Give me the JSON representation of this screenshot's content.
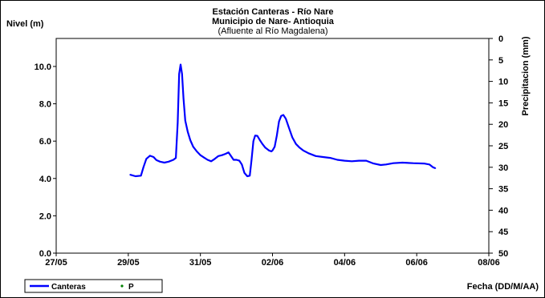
{
  "chart_data": {
    "type": "line",
    "title": "Estación Canteras - Río Nare",
    "title_line2": "Municipio de Nare- Antioquia",
    "subtitle": "(Afluente al Río Magdalena)",
    "ylabel": "Nivel (m)",
    "y2label": "Precipitacion (mm)",
    "xlabel": "Fecha (DD/M/AA)",
    "ylim": [
      0,
      11.5
    ],
    "yticks": [
      "0.0",
      "2.0",
      "4.0",
      "6.0",
      "8.0",
      "10.0"
    ],
    "y2lim": [
      0,
      50
    ],
    "y2reversed": true,
    "y2ticks": [
      "0",
      "5",
      "10",
      "15",
      "20",
      "25",
      "30",
      "35",
      "40",
      "45",
      "50"
    ],
    "xlim": [
      "2008-05-27",
      "2008-06-08"
    ],
    "xticks": [
      "27/05",
      "29/05",
      "31/05",
      "02/06",
      "04/06",
      "06/06",
      "08/06"
    ],
    "grid": false,
    "legend_position": "bottom-left",
    "series": [
      {
        "name": "Canteras",
        "color": "#0000ff",
        "points": [
          [
            29.05,
            4.2
          ],
          [
            29.2,
            4.12
          ],
          [
            29.35,
            4.15
          ],
          [
            29.42,
            4.6
          ],
          [
            29.5,
            5.05
          ],
          [
            29.6,
            5.22
          ],
          [
            29.7,
            5.15
          ],
          [
            29.78,
            4.98
          ],
          [
            29.88,
            4.9
          ],
          [
            30.0,
            4.85
          ],
          [
            30.12,
            4.9
          ],
          [
            30.25,
            5.0
          ],
          [
            30.32,
            5.1
          ],
          [
            30.37,
            7.0
          ],
          [
            30.41,
            9.6
          ],
          [
            30.45,
            10.1
          ],
          [
            30.49,
            9.6
          ],
          [
            30.53,
            8.3
          ],
          [
            30.58,
            7.1
          ],
          [
            30.65,
            6.5
          ],
          [
            30.72,
            6.05
          ],
          [
            30.8,
            5.7
          ],
          [
            30.9,
            5.45
          ],
          [
            31.0,
            5.25
          ],
          [
            31.1,
            5.12
          ],
          [
            31.2,
            5.0
          ],
          [
            31.3,
            4.92
          ],
          [
            31.4,
            5.05
          ],
          [
            31.5,
            5.2
          ],
          [
            31.6,
            5.25
          ],
          [
            31.7,
            5.32
          ],
          [
            31.78,
            5.4
          ],
          [
            31.85,
            5.2
          ],
          [
            31.92,
            5.0
          ],
          [
            32.0,
            5.0
          ],
          [
            32.08,
            4.95
          ],
          [
            32.15,
            4.75
          ],
          [
            32.22,
            4.3
          ],
          [
            32.3,
            4.12
          ],
          [
            32.37,
            4.15
          ],
          [
            32.42,
            5.0
          ],
          [
            32.47,
            6.0
          ],
          [
            32.52,
            6.3
          ],
          [
            32.58,
            6.28
          ],
          [
            32.65,
            6.05
          ],
          [
            32.72,
            5.85
          ],
          [
            32.8,
            5.65
          ],
          [
            32.9,
            5.5
          ],
          [
            32.97,
            5.45
          ],
          [
            33.0,
            5.5
          ],
          [
            33.06,
            5.7
          ],
          [
            33.12,
            6.3
          ],
          [
            33.18,
            7.05
          ],
          [
            33.24,
            7.35
          ],
          [
            33.3,
            7.4
          ],
          [
            33.37,
            7.2
          ],
          [
            33.45,
            6.75
          ],
          [
            33.55,
            6.2
          ],
          [
            33.65,
            5.85
          ],
          [
            33.75,
            5.65
          ],
          [
            33.85,
            5.5
          ],
          [
            34.0,
            5.35
          ],
          [
            34.2,
            5.2
          ],
          [
            34.4,
            5.15
          ],
          [
            34.6,
            5.1
          ],
          [
            34.8,
            5.0
          ],
          [
            35.0,
            4.95
          ],
          [
            35.2,
            4.92
          ],
          [
            35.4,
            4.95
          ],
          [
            35.6,
            4.95
          ],
          [
            35.8,
            4.8
          ],
          [
            36.0,
            4.72
          ],
          [
            36.15,
            4.75
          ],
          [
            36.35,
            4.82
          ],
          [
            36.6,
            4.85
          ],
          [
            36.9,
            4.82
          ],
          [
            37.2,
            4.8
          ],
          [
            37.35,
            4.75
          ],
          [
            37.45,
            4.6
          ],
          [
            37.52,
            4.55
          ]
        ]
      }
    ],
    "legend": [
      {
        "name": "Canteras",
        "color": "#0000ff",
        "marker": "line"
      },
      {
        "name": "P",
        "color": "#008000",
        "marker": "dot"
      }
    ]
  }
}
